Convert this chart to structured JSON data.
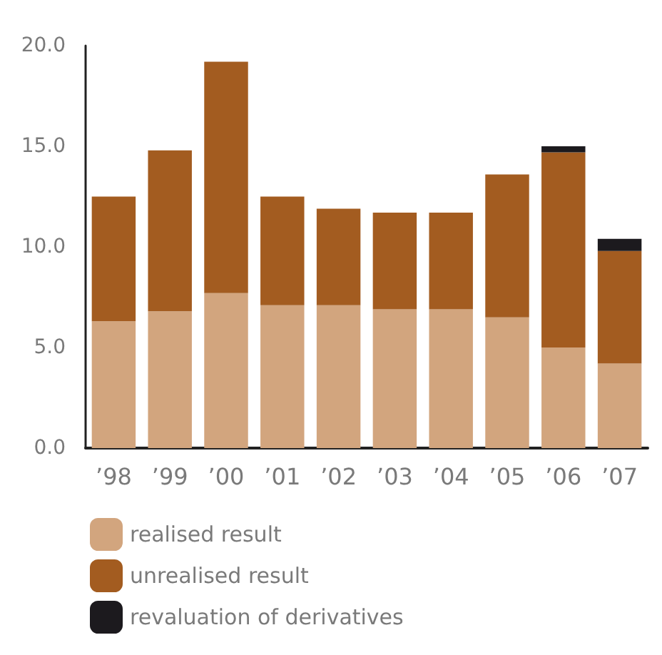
{
  "chart_data": {
    "type": "bar",
    "stacked": true,
    "categories": [
      "’98",
      "’99",
      "’00",
      "’01",
      "’02",
      "’03",
      "’04",
      "’05",
      "’06",
      "’07"
    ],
    "series": [
      {
        "name": "realised result",
        "color": "#d2a57e",
        "values": [
          6.3,
          6.8,
          7.7,
          7.1,
          7.1,
          6.9,
          6.9,
          6.5,
          5.0,
          4.2
        ]
      },
      {
        "name": "unrealised result",
        "color": "#a35c20",
        "values": [
          6.2,
          8.0,
          11.5,
          5.4,
          4.8,
          4.8,
          4.8,
          7.1,
          9.7,
          5.6
        ]
      },
      {
        "name": "revaluation of derivatives",
        "color": "#1c1a1e",
        "values": [
          null,
          null,
          null,
          null,
          null,
          null,
          null,
          null,
          0.3,
          0.6
        ]
      }
    ],
    "ylim": [
      0,
      20
    ],
    "yticks": [
      {
        "value": 0,
        "label": "0.0"
      },
      {
        "value": 5,
        "label": "5.0"
      },
      {
        "value": 10,
        "label": "10.0"
      },
      {
        "value": 15,
        "label": "15.0"
      },
      {
        "value": 20,
        "label": "20.0"
      }
    ],
    "grid": false,
    "legend": "bottom left"
  }
}
